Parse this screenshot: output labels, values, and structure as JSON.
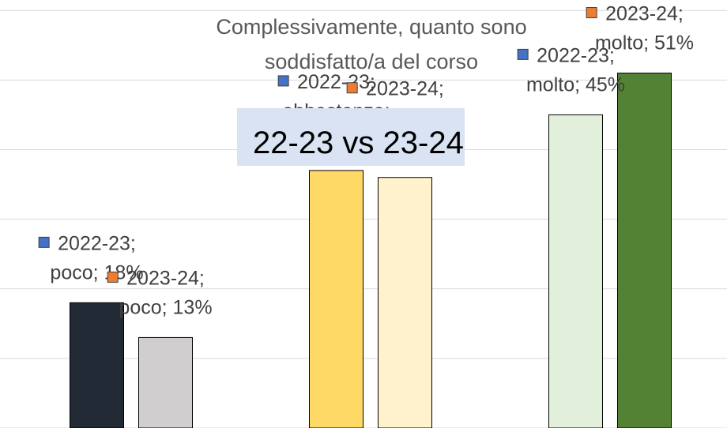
{
  "chart_data": {
    "type": "bar",
    "title": "Complessivamente, quanto sono soddisfatto/a del corso",
    "annotation": "22-23 vs 23-24",
    "categories": [
      "poco",
      "abbastanza",
      "molto"
    ],
    "series": [
      {
        "name": "2022-23",
        "color": "#4472c4",
        "bar_colors": [
          "#222a35",
          "#ffd966",
          "#e2efda"
        ],
        "values": [
          18,
          37,
          45
        ],
        "value_labels": [
          "2022-23;\npoco; 18%",
          "2022-23;\nabbastanza;\n37%",
          "2022-23;\nmolto; 45%"
        ]
      },
      {
        "name": "2023-24",
        "color": "#ed7d31",
        "bar_colors": [
          "#d0cece",
          "#fff2cc",
          "#548235"
        ],
        "values": [
          13,
          36,
          51
        ],
        "value_labels": [
          "2023-24;\npoco; 13%",
          "2023-24;\nabbastanza;\n36%",
          "2023-24;\nmolto; 51%"
        ]
      }
    ],
    "ylim": [
      0,
      61.5
    ],
    "yticks": [
      0,
      10,
      20,
      30,
      40,
      50,
      60
    ],
    "grid": true
  }
}
